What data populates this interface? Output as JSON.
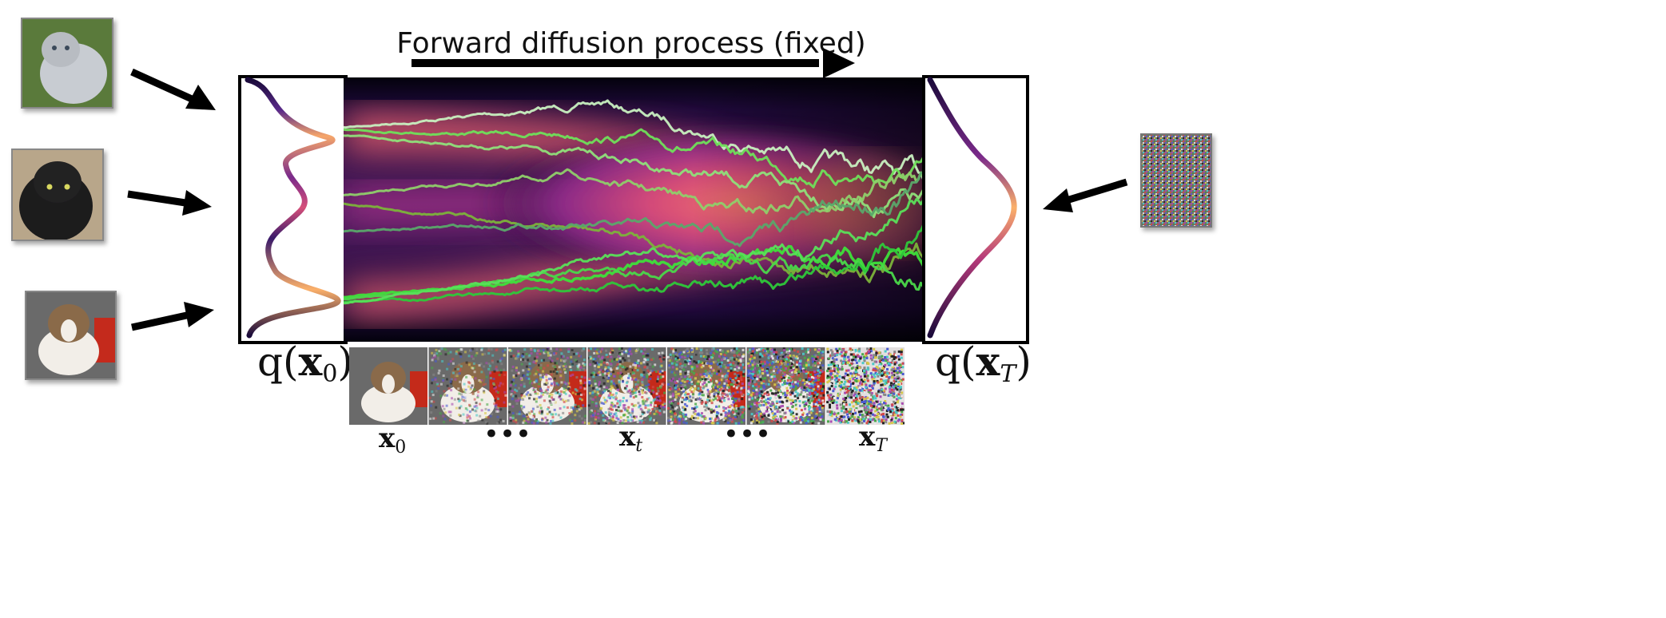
{
  "title": "Forward diffusion process (fixed)",
  "left_distribution": {
    "prefix": "q(",
    "var": "x",
    "sub": "0",
    "suffix": ")"
  },
  "right_distribution": {
    "prefix": "q(",
    "var": "x",
    "sub": "T",
    "suffix": ")"
  },
  "frame_labels": [
    {
      "var": "x",
      "sub": "0"
    },
    {
      "dots": "•••"
    },
    {
      "var": "x",
      "sub": "t"
    },
    {
      "dots": "•••"
    },
    {
      "var": "x",
      "sub": "T"
    }
  ],
  "colors": {
    "arrow": "#000000",
    "band_core": "#f7766a",
    "band_mid": "#b7377a",
    "band_dark": "#4a0f6b",
    "background_dark": "#050312",
    "trajectory_light": "#c8f5c0",
    "trajectory_green": "#4ee04a",
    "trajectory_olive": "#7cb33a"
  },
  "icons": [
    "cat-image",
    "noise-image"
  ]
}
